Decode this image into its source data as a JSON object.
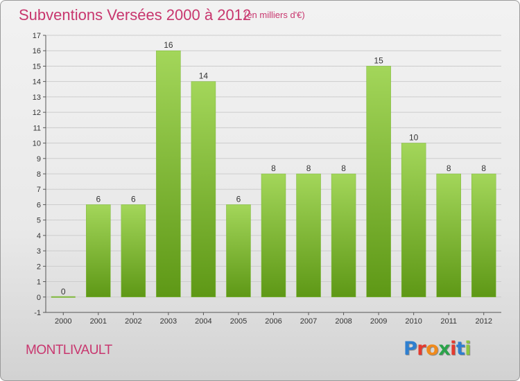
{
  "title": "Subventions Versées 2000 à 2012",
  "subtitle": "(en milliers d'€)",
  "commune": "MONTLIVAULT",
  "logo": {
    "text": "Proxiti",
    "letter_colors": [
      "#2e7fd0",
      "#e43a2f",
      "#f08a1c",
      "#2aa34a",
      "#e43a2f",
      "#2e7fd0",
      "#8cc63f"
    ]
  },
  "colors": {
    "title": "#c8366e",
    "bar_top": "#a3d65a",
    "bar_bottom": "#5e9816",
    "grid": "#cccccc"
  },
  "chart_data": {
    "type": "bar",
    "title": "Subventions Versées 2000 à 2012",
    "xlabel": "",
    "ylabel": "",
    "categories": [
      "2000",
      "2001",
      "2002",
      "2003",
      "2004",
      "2005",
      "2006",
      "2007",
      "2008",
      "2009",
      "2010",
      "2011",
      "2012"
    ],
    "values": [
      0,
      6,
      6,
      16,
      14,
      6,
      8,
      8,
      8,
      15,
      10,
      8,
      8
    ],
    "data_labels": [
      "0",
      "6",
      "6",
      "16",
      "14",
      "6",
      "8",
      "8",
      "8",
      "15",
      "10",
      "8",
      "8"
    ],
    "ylim": [
      -1,
      17
    ],
    "yticks": [
      -1,
      0,
      1,
      2,
      3,
      4,
      5,
      6,
      7,
      8,
      9,
      10,
      11,
      12,
      13,
      14,
      15,
      16,
      17
    ],
    "grid": true,
    "legend": "none"
  }
}
